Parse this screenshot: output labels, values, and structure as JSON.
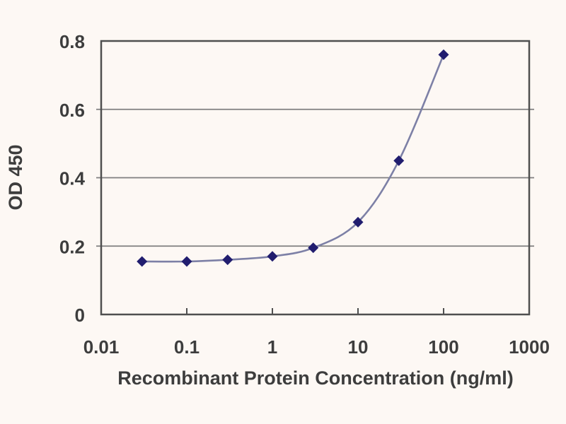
{
  "page": {
    "background": "#fdf8f4"
  },
  "chart_data": {
    "type": "line",
    "title": "",
    "xlabel": "Recombinant Protein Concentration (ng/ml)",
    "ylabel": "OD 450",
    "x_scale": "log",
    "xlim": [
      0.01,
      1000
    ],
    "ylim": [
      0,
      0.8
    ],
    "x_ticks": [
      0.01,
      0.1,
      1,
      10,
      100,
      1000
    ],
    "x_tick_labels": [
      "0.01",
      "0.1",
      "1",
      "10",
      "100",
      "1000"
    ],
    "y_ticks": [
      0,
      0.2,
      0.4,
      0.6,
      0.8
    ],
    "y_tick_labels": [
      "0",
      "0.2",
      "0.4",
      "0.6",
      "0.8"
    ],
    "grid": "horizontal-only",
    "legend": "none",
    "series": [
      {
        "name": "OD 450 vs concentration",
        "marker": "diamond",
        "x": [
          0.03,
          0.1,
          0.3,
          1,
          3,
          10,
          30,
          100
        ],
        "y": [
          0.155,
          0.155,
          0.16,
          0.17,
          0.195,
          0.27,
          0.45,
          0.76
        ]
      }
    ],
    "colors": {
      "line": "#7d80a6",
      "marker": "#211d6f",
      "grid": "#7f7f7f",
      "frame": "#4f4f4f",
      "text": "#3d3d3d",
      "background": "#fdf8f4"
    }
  }
}
